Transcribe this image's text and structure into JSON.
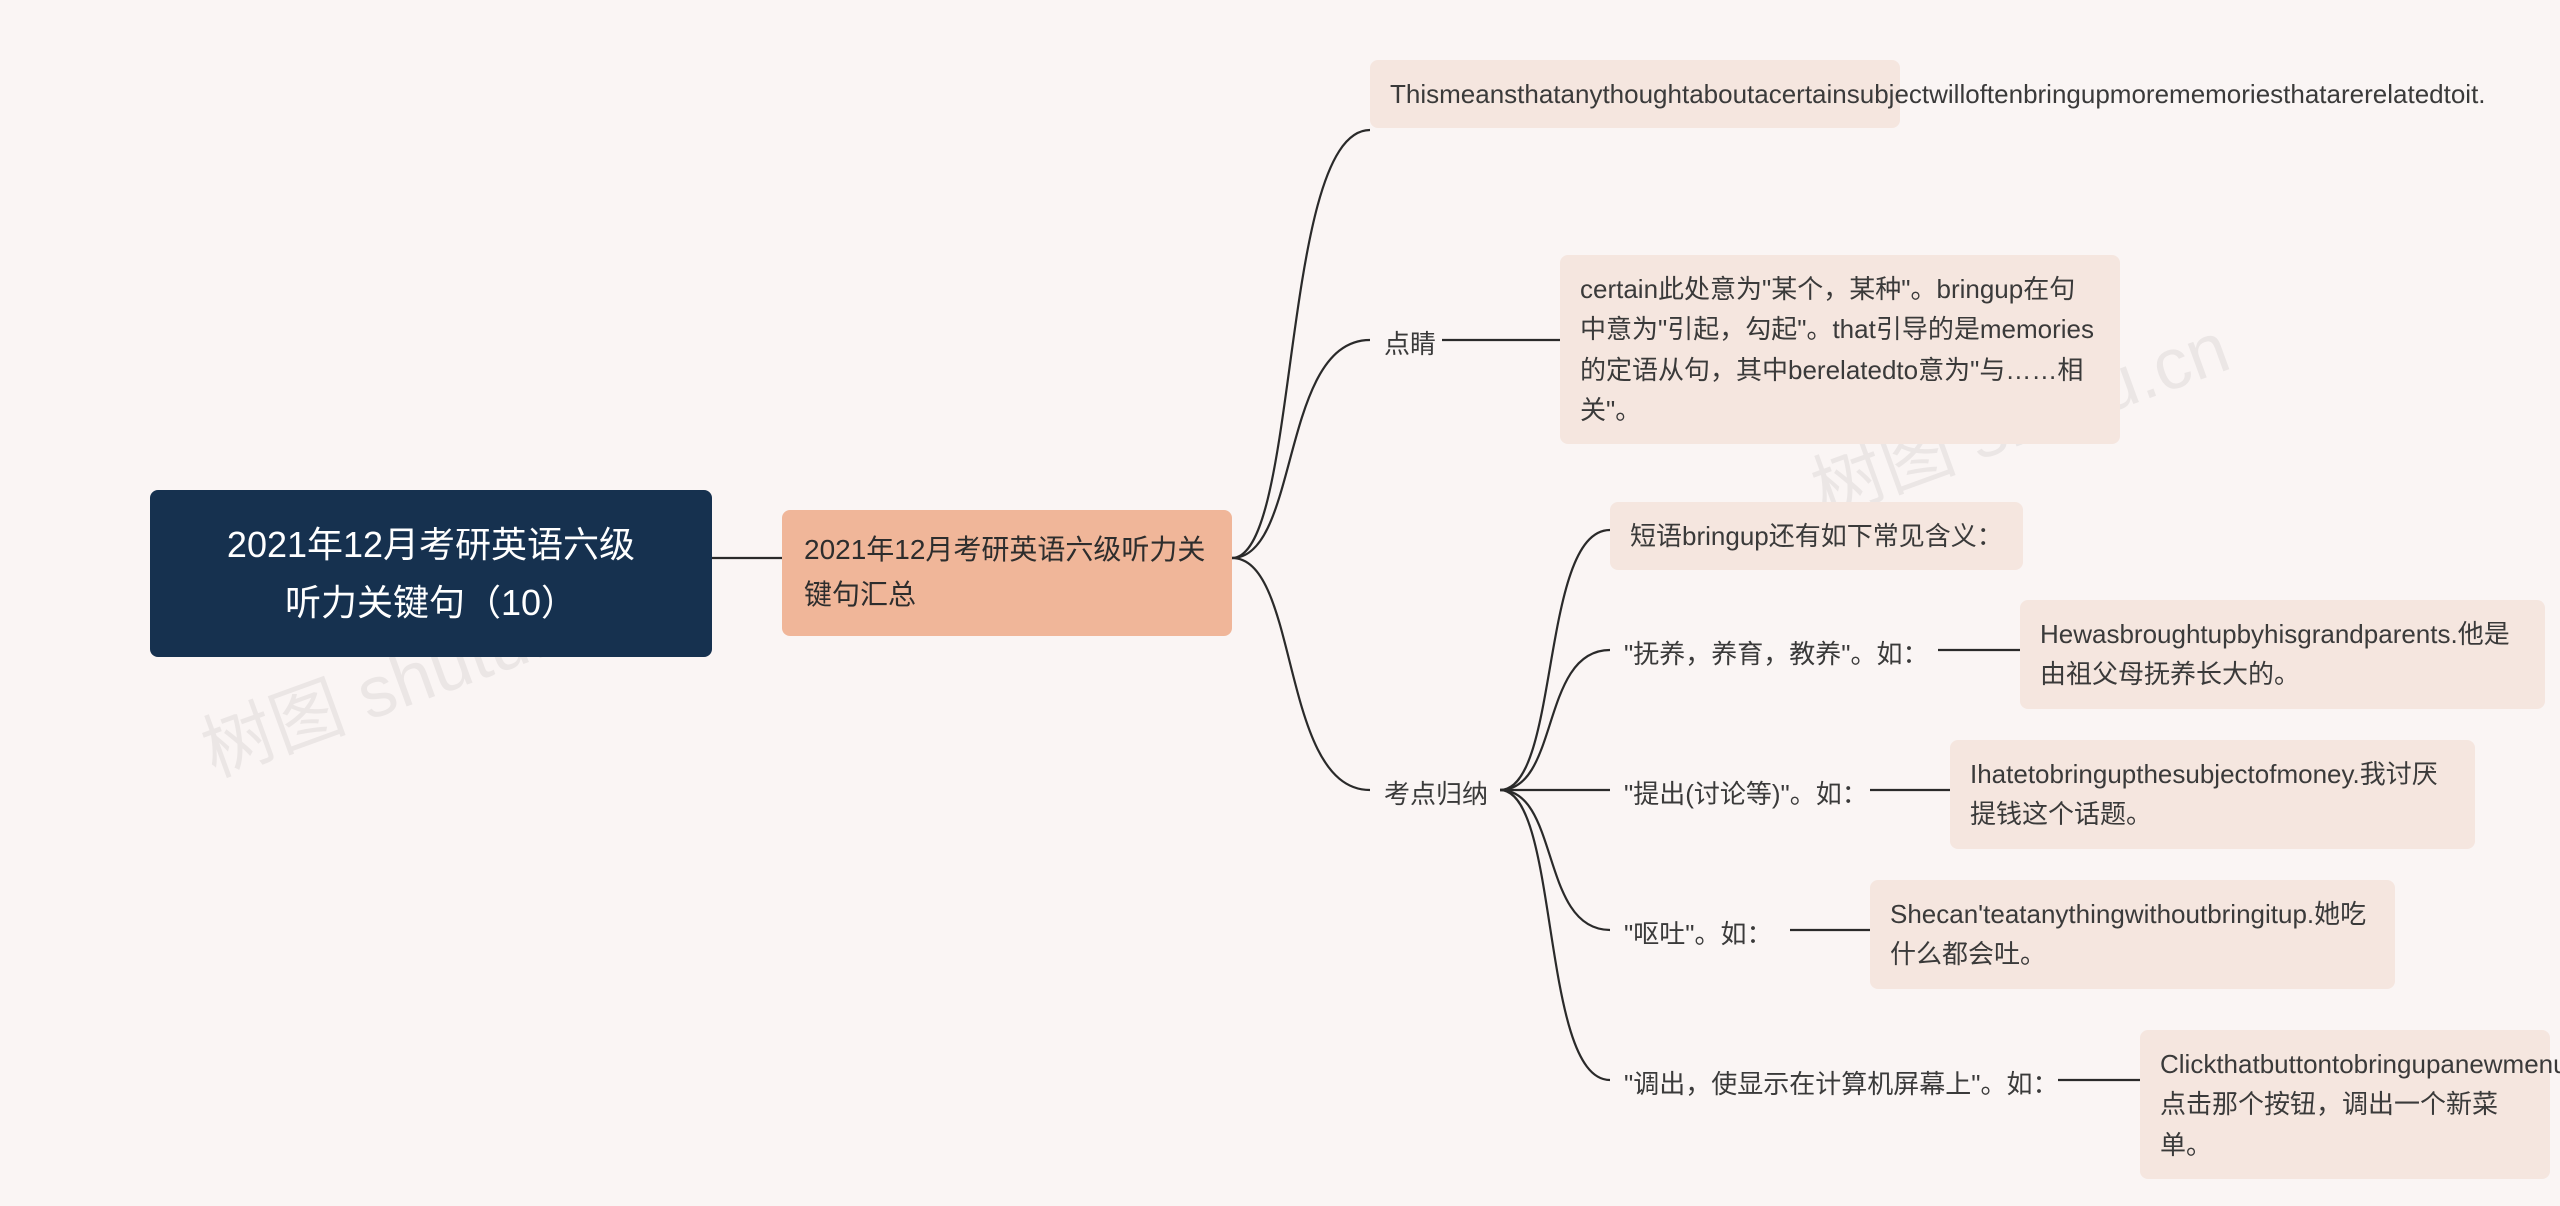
{
  "diagram": {
    "type": "tree",
    "background_color": "#faf5f4",
    "watermark_text": "树图 shutu.cn",
    "root": {
      "text": "2021年12月考研英语六级\n听力关键句（10）",
      "bg_color": "#16314f",
      "text_color": "#ffffff",
      "fontsize": 36
    },
    "level1": {
      "text": "2021年12月考研英语六级听力关键句汇总",
      "bg_color": "#f0b699",
      "text_color": "#2d2d2d",
      "fontsize": 28
    },
    "children": {
      "sentence": {
        "text": "Thismeansthatanythoughtaboutacertainsubjectwilloftenbringupmorememoriesthatarerelatedtoit."
      },
      "dianjing": {
        "label": "点睛",
        "text": "certain此处意为\"某个，某种\"。bringup在句中意为\"引起，勾起\"。that引导的是memories的定语从句，其中berelatedto意为\"与……相关\"。"
      },
      "kaodian": {
        "label": "考点归纳",
        "intro": "短语bringup还有如下常见含义：",
        "items": [
          {
            "label": "\"抚养，养育，教养\"。如：",
            "example": "Hewasbroughtupbyhisgrandparents.他是由祖父母抚养长大的。"
          },
          {
            "label": "\"提出(讨论等)\"。如：",
            "example": "Ihatetobringupthesubjectofmoney.我讨厌提钱这个话题。"
          },
          {
            "label": "\"呕吐\"。如：",
            "example": "Shecan'teatanythingwithoutbringitup.她吃什么都会吐。"
          },
          {
            "label": "\"调出，使显示在计算机屏幕上\"。如：",
            "example": "Clickthatbuttontobringupanewmenu.点击那个按钮，调出一个新菜单。"
          }
        ]
      }
    },
    "leaf_style": {
      "bg_color": "#f5e6df",
      "text_color": "#3a3a3a",
      "fontsize": 26,
      "border_radius": 8
    },
    "connector_color": "#2a2a2a",
    "connector_width": 2.2
  }
}
